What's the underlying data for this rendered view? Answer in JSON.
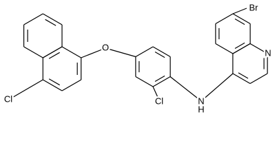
{
  "atoms": [
    "Br",
    "N",
    "O",
    "Cl",
    "Cl",
    "N",
    "H"
  ]
}
